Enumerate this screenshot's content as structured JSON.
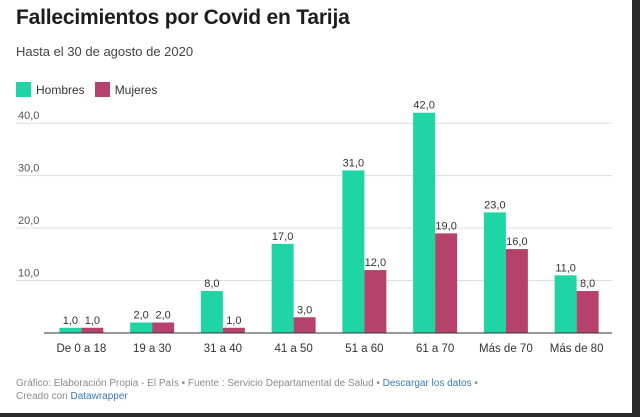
{
  "title": "Fallecimientos por Covid en Tarija",
  "subtitle": "Hasta el 30 de agosto de 2020",
  "colors": {
    "hombres": "#1fd4a5",
    "mujeres": "#b6416a",
    "grid": "#dddddd",
    "axis": "#333333"
  },
  "footer": {
    "text": "Gráfico: Elaboración Propia - El País • Fuente : Servicio Departamental de Salud • ",
    "download_link": "Descargar los datos",
    "after_download": " •",
    "created_prefix": "Creado con ",
    "created_link": "Datawrapper"
  },
  "chart_data": {
    "type": "bar",
    "categories": [
      "De 0 a 18",
      "19 a 30",
      "31 a 40",
      "41 a 50",
      "51 a 60",
      "61 a 70",
      "Más de 70",
      "Más de 80"
    ],
    "series": [
      {
        "name": "Hombres",
        "values": [
          1.0,
          2.0,
          8.0,
          17.0,
          31.0,
          42.0,
          23.0,
          11.0
        ]
      },
      {
        "name": "Mujeres",
        "values": [
          1.0,
          2.0,
          1.0,
          3.0,
          12.0,
          19.0,
          16.0,
          8.0
        ]
      }
    ],
    "yticks": [
      "10,0",
      "20,0",
      "30,0",
      "40,0"
    ],
    "ylim": [
      0,
      45
    ],
    "grid": true,
    "legend": "top-left"
  }
}
